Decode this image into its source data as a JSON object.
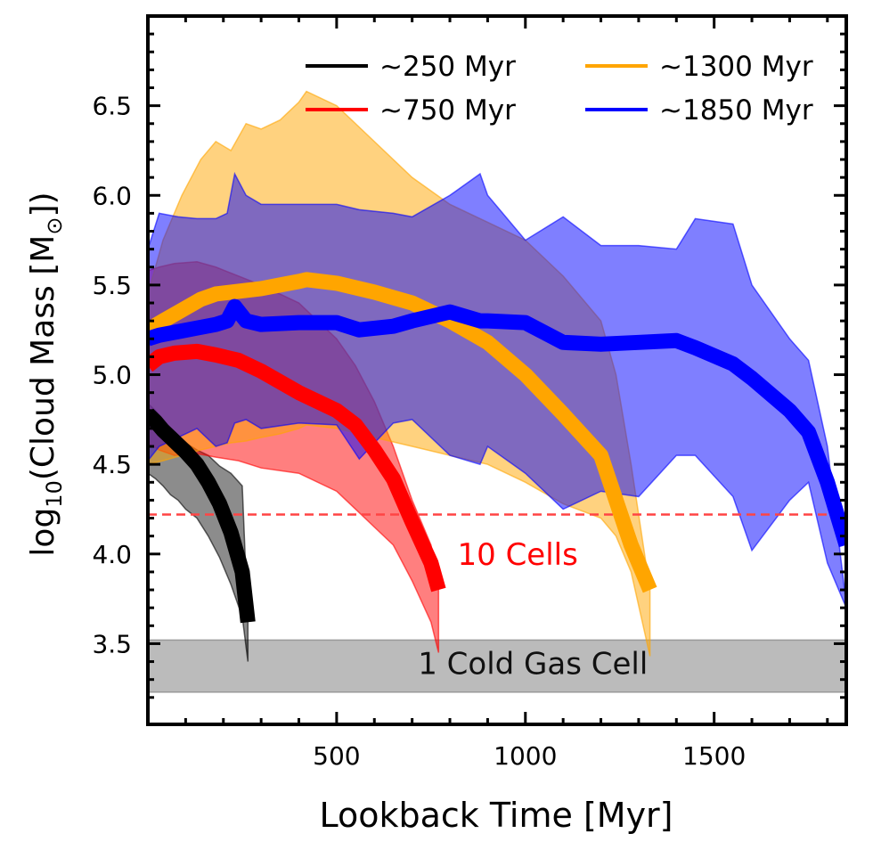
{
  "chart_data": {
    "type": "line",
    "xlabel": "Lookback Time [Myr]",
    "ylabel": {
      "prefix": "log",
      "subscript": "10",
      "middle": "(Cloud Mass [M",
      "symbol": "⊙",
      "suffix": "])"
    },
    "xlim": [
      0,
      1850
    ],
    "ylim": [
      3.05,
      7.0
    ],
    "xticks": [
      500,
      1000,
      1500
    ],
    "xtick_labels": [
      "500",
      "1000",
      "1500"
    ],
    "yticks": [
      3.5,
      4.0,
      4.5,
      5.0,
      5.5,
      6.0,
      6.5
    ],
    "ytick_labels": [
      "3.5",
      "4.0",
      "4.5",
      "5.0",
      "5.5",
      "6.0",
      "6.5"
    ],
    "legend_position": "top-right",
    "series": [
      {
        "name": "∼250 Myr",
        "color": "#000000",
        "x": [
          0,
          20,
          40,
          60,
          80,
          100,
          130,
          160,
          190,
          220,
          250,
          265
        ],
        "median": [
          4.78,
          4.74,
          4.69,
          4.65,
          4.61,
          4.57,
          4.5,
          4.4,
          4.28,
          4.12,
          3.9,
          3.62
        ],
        "upper": [
          4.84,
          4.8,
          4.75,
          4.7,
          4.65,
          4.62,
          4.58,
          4.55,
          4.49,
          4.45,
          4.38,
          3.62
        ],
        "lower": [
          4.45,
          4.42,
          4.38,
          4.33,
          4.3,
          4.25,
          4.2,
          4.1,
          3.98,
          3.83,
          3.65,
          3.4
        ]
      },
      {
        "name": "∼750 Myr",
        "color": "#ff0000",
        "x": [
          0,
          30,
          70,
          130,
          180,
          240,
          300,
          400,
          500,
          550,
          600,
          650,
          700,
          750,
          770
        ],
        "median": [
          5.05,
          5.1,
          5.12,
          5.13,
          5.11,
          5.08,
          5.02,
          4.9,
          4.8,
          4.72,
          4.58,
          4.42,
          4.18,
          3.95,
          3.8
        ],
        "upper": [
          5.58,
          5.6,
          5.62,
          5.63,
          5.6,
          5.55,
          5.5,
          5.4,
          5.2,
          5.05,
          4.85,
          4.6,
          4.3,
          4.05,
          3.8
        ],
        "lower": [
          4.62,
          4.58,
          4.55,
          4.56,
          4.54,
          4.52,
          4.48,
          4.45,
          4.35,
          4.25,
          4.15,
          4.05,
          3.85,
          3.62,
          3.45
        ]
      },
      {
        "name": "∼1300 Myr",
        "color": "#ffa500",
        "x": [
          0,
          40,
          90,
          140,
          180,
          220,
          260,
          300,
          350,
          400,
          420,
          500,
          600,
          700,
          800,
          900,
          1000,
          1100,
          1200,
          1240,
          1280,
          1330
        ],
        "median": [
          5.25,
          5.3,
          5.36,
          5.42,
          5.45,
          5.46,
          5.47,
          5.48,
          5.5,
          5.52,
          5.53,
          5.51,
          5.46,
          5.4,
          5.3,
          5.18,
          5.0,
          4.78,
          4.55,
          4.3,
          4.05,
          3.8
        ],
        "upper": [
          5.45,
          5.75,
          6.0,
          6.2,
          6.3,
          6.25,
          6.4,
          6.37,
          6.42,
          6.52,
          6.58,
          6.5,
          6.3,
          6.1,
          5.95,
          5.85,
          5.75,
          5.55,
          5.3,
          5.0,
          4.5,
          3.8
        ],
        "lower": [
          4.5,
          4.52,
          4.55,
          4.58,
          4.6,
          4.62,
          4.63,
          4.65,
          4.67,
          4.7,
          4.72,
          4.7,
          4.65,
          4.6,
          4.55,
          4.5,
          4.4,
          4.28,
          4.2,
          4.1,
          3.9,
          3.43
        ]
      },
      {
        "name": "∼1850 Myr",
        "color": "#0000ff",
        "x": [
          0,
          30,
          80,
          130,
          180,
          210,
          230,
          260,
          300,
          400,
          500,
          560,
          650,
          700,
          800,
          880,
          900,
          1000,
          1100,
          1200,
          1300,
          1400,
          1450,
          1550,
          1600,
          1700,
          1750,
          1800,
          1850
        ],
        "median": [
          5.2,
          5.22,
          5.24,
          5.26,
          5.28,
          5.3,
          5.38,
          5.3,
          5.28,
          5.29,
          5.29,
          5.25,
          5.27,
          5.3,
          5.35,
          5.3,
          5.3,
          5.29,
          5.18,
          5.17,
          5.18,
          5.19,
          5.15,
          5.06,
          4.98,
          4.8,
          4.68,
          4.4,
          4.05
        ],
        "upper": [
          5.7,
          5.9,
          5.88,
          5.87,
          5.87,
          5.9,
          6.12,
          6.0,
          5.95,
          5.95,
          5.95,
          5.92,
          5.9,
          5.88,
          6.0,
          6.12,
          6.0,
          5.75,
          5.88,
          5.72,
          5.72,
          5.7,
          5.87,
          5.84,
          5.5,
          5.2,
          5.08,
          4.6,
          3.72
        ],
        "lower": [
          4.52,
          4.6,
          4.65,
          4.7,
          4.6,
          4.62,
          4.73,
          4.75,
          4.7,
          4.73,
          4.72,
          4.53,
          4.73,
          4.75,
          4.55,
          4.5,
          4.6,
          4.45,
          4.25,
          4.35,
          4.32,
          4.55,
          4.55,
          4.32,
          4.02,
          4.3,
          4.4,
          3.95,
          3.7
        ]
      }
    ],
    "threshold_line": {
      "y": 4.22,
      "color": "#ff4444",
      "style": "dashed",
      "label": "10 Cells",
      "label_x": 820,
      "label_y": 4.0
    },
    "band": {
      "y_low": 3.23,
      "y_high": 3.52,
      "color": "#bbbbbb",
      "label": "1 Cold Gas Cell",
      "label_x": 1020,
      "label_y": 3.33
    }
  }
}
